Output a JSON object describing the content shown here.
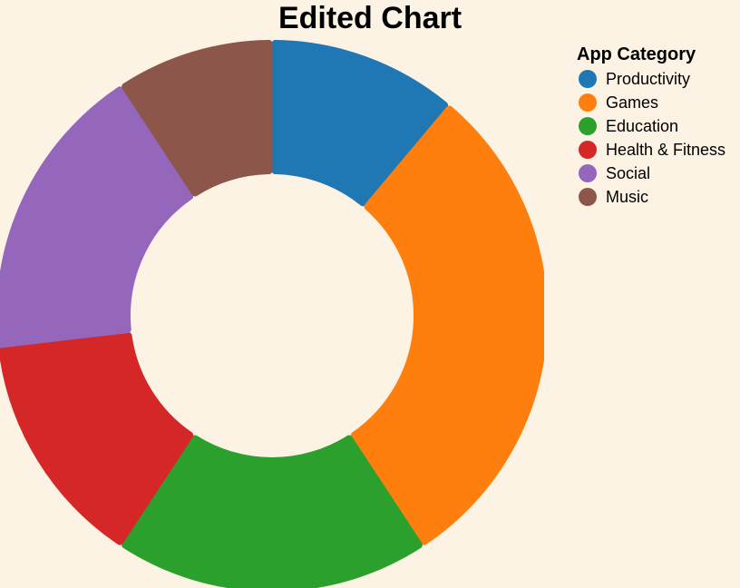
{
  "chart_data": {
    "type": "pie",
    "title": "Edited Chart",
    "legend_title": "App Category",
    "legend_position": "top-right",
    "donut": true,
    "categories": [
      "Productivity",
      "Games",
      "Education",
      "Health & Fitness",
      "Social",
      "Music"
    ],
    "values": [
      12,
      32,
      20,
      15,
      19,
      10
    ],
    "colors": [
      "#1f77b4",
      "#ff7f0e",
      "#2ca02c",
      "#d62728",
      "#9467bd",
      "#8c564b"
    ]
  }
}
